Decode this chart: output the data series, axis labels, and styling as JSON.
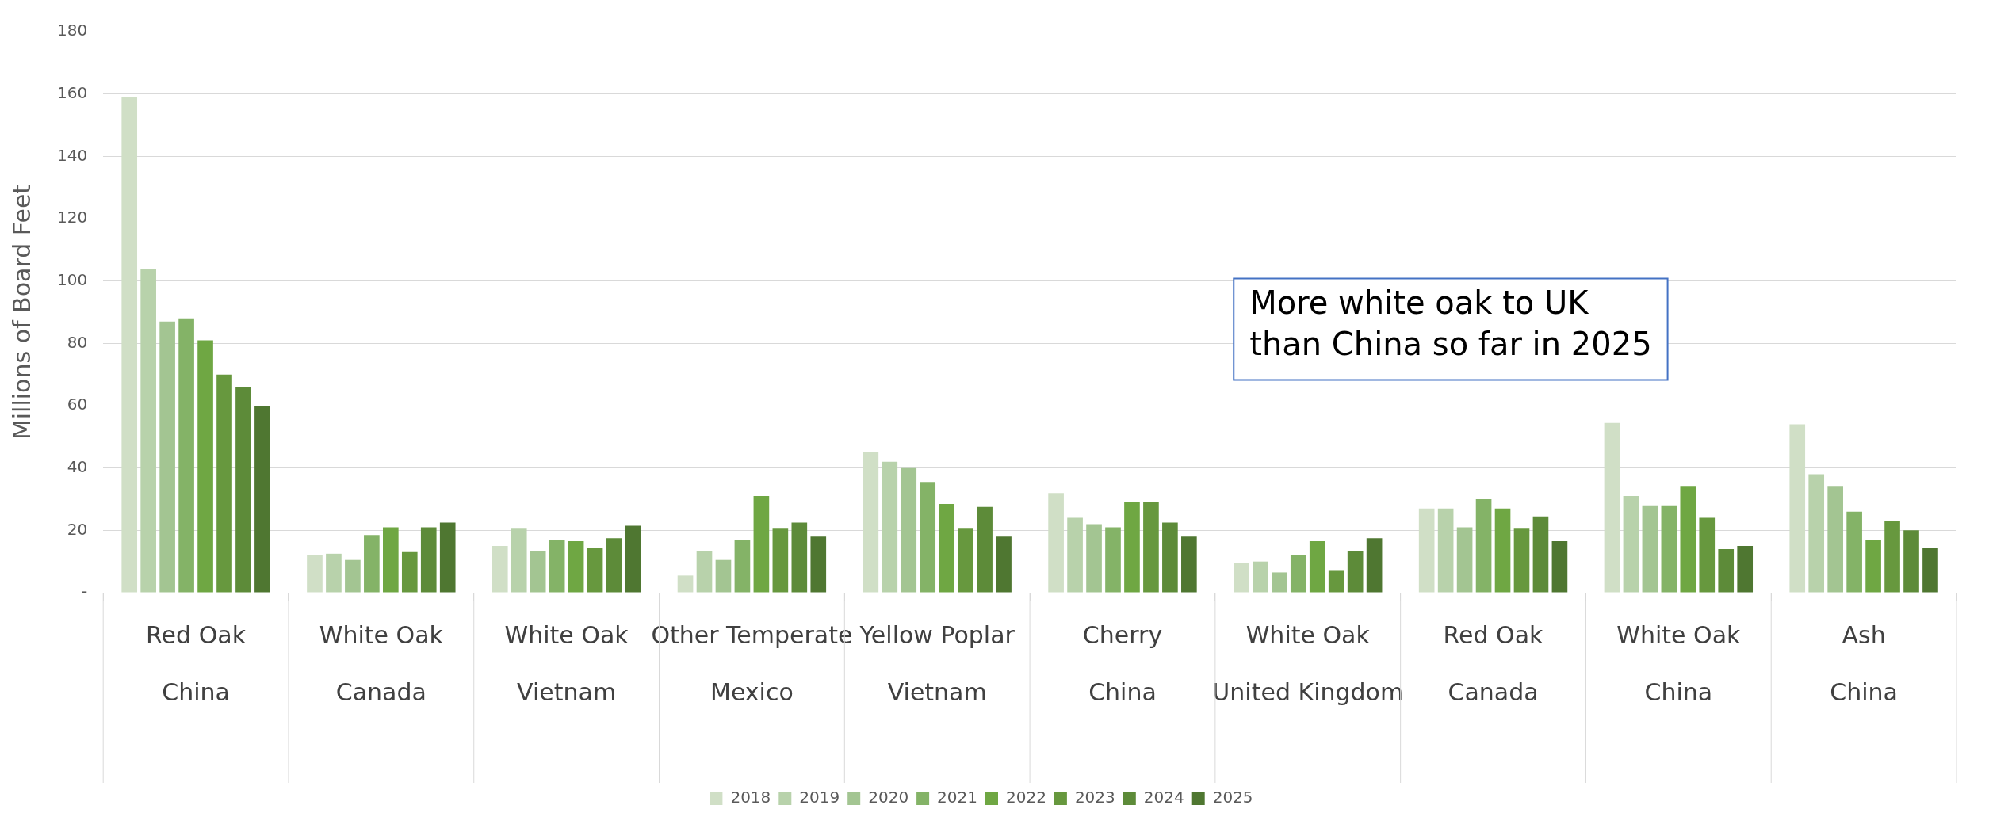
{
  "chart_data": {
    "type": "bar",
    "ylabel": "Millions of Board Feet",
    "categories": [
      "Red Oak\nChina",
      "White Oak\nCanada",
      "White Oak\nVietnam",
      "Other Temperate\nMexico",
      "Yellow Poplar\nVietnam",
      "Cherry\nChina",
      "White Oak\nUnited Kingdom",
      "Red Oak\nCanada",
      "White Oak\nChina",
      "Ash\nChina"
    ],
    "series": [
      {
        "name": "2018",
        "color": "#d0dfc6",
        "values": [
          159,
          12,
          15,
          5.5,
          45,
          32,
          9.5,
          27,
          54.5,
          54
        ]
      },
      {
        "name": "2019",
        "color": "#b8d2ab",
        "values": [
          104,
          12.5,
          20.5,
          13.5,
          42,
          24,
          10,
          27,
          31,
          38
        ]
      },
      {
        "name": "2020",
        "color": "#a3c592",
        "values": [
          87,
          10.5,
          13.5,
          10.5,
          40,
          22,
          6.5,
          21,
          28,
          34
        ]
      },
      {
        "name": "2021",
        "color": "#84b367",
        "values": [
          88,
          18.5,
          17,
          17,
          35.5,
          21,
          12,
          30,
          28,
          26
        ]
      },
      {
        "name": "2022",
        "color": "#6fa743",
        "values": [
          81,
          21,
          16.5,
          31,
          28.5,
          29,
          16.5,
          27,
          34,
          17
        ]
      },
      {
        "name": "2023",
        "color": "#67983e",
        "values": [
          70,
          13,
          14.5,
          20.5,
          20.5,
          29,
          7,
          20.5,
          24,
          23
        ]
      },
      {
        "name": "2024",
        "color": "#5d8b39",
        "values": [
          66,
          21,
          17.5,
          22.5,
          27.5,
          22.5,
          13.5,
          24.5,
          14,
          20
        ]
      },
      {
        "name": "2025",
        "color": "#4f7731",
        "values": [
          60,
          22.5,
          21.5,
          18,
          18,
          18,
          17.5,
          16.5,
          15,
          14.5
        ]
      }
    ],
    "ylim": [
      0,
      180
    ],
    "yticks": [
      {
        "value": 0,
        "label": "-"
      },
      20,
      40,
      60,
      80,
      100,
      120,
      140,
      160,
      180
    ],
    "grid": "y",
    "legend": "bottom",
    "annotations": [
      "More white oak to UK\nthan China so far in 2025"
    ]
  }
}
